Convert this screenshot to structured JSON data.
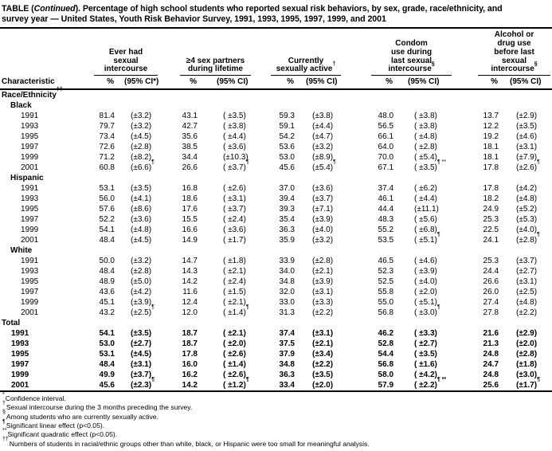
{
  "title": {
    "prefix": "TABLE (",
    "continued": "Continued",
    "suffix": "). ",
    "line1_rest": "Percentage of high school students who reported sexual risk behaviors, by sex, grade, race/ethnicity, and",
    "line2": "survey year — United States, Youth Risk Behavior Survey, 1991, 1993, 1995, 1997, 1999, and 2001"
  },
  "table": {
    "char_header": "Characteristic",
    "groups": [
      {
        "lines": [
          "Ever had",
          "sexual",
          "intercourse"
        ],
        "sup": "",
        "pct": "%",
        "ci": "(95% CI*)"
      },
      {
        "lines": [
          "≥4 sex partners",
          "during lifetime"
        ],
        "sup": "",
        "pct": "%",
        "ci": "(95% CI)"
      },
      {
        "lines": [
          "Currently",
          "sexually active"
        ],
        "sup": "†",
        "pct": "%",
        "ci": "(95% CI)"
      },
      {
        "lines": [
          "Condom",
          "use during",
          "last sexual",
          "intercourse"
        ],
        "sup": "§",
        "pct": "%",
        "ci": "(95% CI)"
      },
      {
        "lines": [
          "Alcohol or",
          "drug use",
          "before last",
          "sexual",
          "intercourse"
        ],
        "sup": "§",
        "pct": "%",
        "ci": "(95% CI)"
      }
    ],
    "rows": [
      {
        "t": "g",
        "label": "Race/Ethnicity",
        "sup": "††"
      },
      {
        "t": "s",
        "label": "Black"
      },
      {
        "label": "1991",
        "v": [
          [
            "81.4",
            "(±3.2)"
          ],
          [
            "43.1",
            "( ±3.5)"
          ],
          [
            "59.3",
            "(±3.8)"
          ],
          [
            "48.0",
            "( ±3.8)"
          ],
          [
            "13.7",
            "(±2.9)"
          ]
        ]
      },
      {
        "label": "1993",
        "v": [
          [
            "79.7",
            "(±3.2)"
          ],
          [
            "42.7",
            "( ±3.8)"
          ],
          [
            "59.1",
            "(±4.4)"
          ],
          [
            "56.5",
            "( ±3.8)"
          ],
          [
            "12.2",
            "(±3.5)"
          ]
        ]
      },
      {
        "label": "1995",
        "v": [
          [
            "73.4",
            "(±4.5)"
          ],
          [
            "35.6",
            "( ±4.4)"
          ],
          [
            "54.2",
            "(±4.7)"
          ],
          [
            "66.1",
            "( ±4.8)"
          ],
          [
            "19.2",
            "(±4.6)"
          ]
        ]
      },
      {
        "label": "1997",
        "v": [
          [
            "72.6",
            "(±2.8)"
          ],
          [
            "38.5",
            "( ±3.6)"
          ],
          [
            "53.6",
            "(±3.2)"
          ],
          [
            "64.0",
            "( ±2.8)"
          ],
          [
            "18.1",
            "(±3.1)"
          ]
        ]
      },
      {
        "label": "1999",
        "v": [
          [
            "71.2",
            "(±8.2)"
          ],
          [
            "34.4",
            "(±10.3)"
          ],
          [
            "53.0",
            "(±8.9)"
          ],
          [
            "70.0",
            "( ±5.4)"
          ],
          [
            "18.1",
            "(±7.9)"
          ]
        ]
      },
      {
        "label": "2001",
        "v": [
          [
            "60.8",
            "(±6.6)",
            "¶"
          ],
          [
            "26.6",
            "( ±3.7)",
            "¶"
          ],
          [
            "45.6",
            "(±5.4)",
            "¶"
          ],
          [
            "67.1",
            "( ±3.5)",
            "¶ **"
          ],
          [
            "17.8",
            "(±2.6)",
            "¶"
          ]
        ]
      },
      {
        "t": "s",
        "label": "Hispanic"
      },
      {
        "label": "1991",
        "v": [
          [
            "53.1",
            "(±3.5)"
          ],
          [
            "16.8",
            "( ±2.6)"
          ],
          [
            "37.0",
            "(±3.6)"
          ],
          [
            "37.4",
            "( ±6.2)"
          ],
          [
            "17.8",
            "(±4.2)"
          ]
        ]
      },
      {
        "label": "1993",
        "v": [
          [
            "56.0",
            "(±4.1)"
          ],
          [
            "18.6",
            "( ±3.1)"
          ],
          [
            "39.4",
            "(±3.7)"
          ],
          [
            "46.1",
            "( ±4.4)"
          ],
          [
            "18.2",
            "(±4.8)"
          ]
        ]
      },
      {
        "label": "1995",
        "v": [
          [
            "57.6",
            "(±8.6)"
          ],
          [
            "17.6",
            "( ±3.7)"
          ],
          [
            "39.3",
            "(±7.1)"
          ],
          [
            "44.4",
            "(±11.1)"
          ],
          [
            "24.9",
            "(±5.2)"
          ]
        ]
      },
      {
        "label": "1997",
        "v": [
          [
            "52.2",
            "(±3.6)"
          ],
          [
            "15.5",
            "( ±2.4)"
          ],
          [
            "35.4",
            "(±3.9)"
          ],
          [
            "48.3",
            "( ±5.6)"
          ],
          [
            "25.3",
            "(±5.3)"
          ]
        ]
      },
      {
        "label": "1999",
        "v": [
          [
            "54.1",
            "(±4.8)"
          ],
          [
            "16.6",
            "( ±3.6)"
          ],
          [
            "36.3",
            "(±4.0)"
          ],
          [
            "55.2",
            "( ±6.8)"
          ],
          [
            "22.5",
            "(±4.0)"
          ]
        ]
      },
      {
        "label": "2001",
        "v": [
          [
            "48.4",
            "(±4.5)"
          ],
          [
            "14.9",
            "( ±1.7)"
          ],
          [
            "35.9",
            "(±3.2)"
          ],
          [
            "53.5",
            "( ±5.1)",
            "¶"
          ],
          [
            "24.1",
            "(±2.8)",
            "¶"
          ]
        ]
      },
      {
        "t": "s",
        "label": "White"
      },
      {
        "label": "1991",
        "v": [
          [
            "50.0",
            "(±3.2)"
          ],
          [
            "14.7",
            "( ±1.8)"
          ],
          [
            "33.9",
            "(±2.8)"
          ],
          [
            "46.5",
            "( ±4.6)"
          ],
          [
            "25.3",
            "(±3.7)"
          ]
        ]
      },
      {
        "label": "1993",
        "v": [
          [
            "48.4",
            "(±2.8)"
          ],
          [
            "14.3",
            "( ±2.1)"
          ],
          [
            "34.0",
            "(±2.1)"
          ],
          [
            "52.3",
            "( ±3.9)"
          ],
          [
            "24.4",
            "(±2.7)"
          ]
        ]
      },
      {
        "label": "1995",
        "v": [
          [
            "48.9",
            "(±5.0)"
          ],
          [
            "14.2",
            "( ±2.4)"
          ],
          [
            "34.8",
            "(±3.9)"
          ],
          [
            "52.5",
            "( ±4.0)"
          ],
          [
            "26.6",
            "(±3.1)"
          ]
        ]
      },
      {
        "label": "1997",
        "v": [
          [
            "43.6",
            "(±4.2)"
          ],
          [
            "11.6",
            "( ±1.5)"
          ],
          [
            "32.0",
            "(±3.1)"
          ],
          [
            "55.8",
            "( ±2.0)"
          ],
          [
            "26.0",
            "(±2.5)"
          ]
        ]
      },
      {
        "label": "1999",
        "v": [
          [
            "45.1",
            "(±3.9)"
          ],
          [
            "12.4",
            "( ±2.1)"
          ],
          [
            "33.0",
            "(±3.3)"
          ],
          [
            "55.0",
            "( ±5.1)"
          ],
          [
            "27.4",
            "(±4.8)"
          ]
        ]
      },
      {
        "label": "2001",
        "v": [
          [
            "43.2",
            "(±2.5)",
            "¶"
          ],
          [
            "12.0",
            "( ±1.4)",
            "¶"
          ],
          [
            "31.3",
            "(±2.2)"
          ],
          [
            "56.8",
            "( ±3.0)",
            "¶"
          ],
          [
            "27.8",
            "(±2.2)"
          ]
        ]
      },
      {
        "t": "g",
        "label": "Total",
        "sup": ""
      },
      {
        "b": true,
        "label": "1991",
        "v": [
          [
            "54.1",
            "(±3.5)"
          ],
          [
            "18.7",
            "( ±2.1)"
          ],
          [
            "37.4",
            "(±3.1)"
          ],
          [
            "46.2",
            "( ±3.3)"
          ],
          [
            "21.6",
            "(±2.9)"
          ]
        ]
      },
      {
        "b": true,
        "label": "1993",
        "v": [
          [
            "53.0",
            "(±2.7)"
          ],
          [
            "18.7",
            "( ±2.0)"
          ],
          [
            "37.5",
            "(±2.1)"
          ],
          [
            "52.8",
            "( ±2.7)"
          ],
          [
            "21.3",
            "(±2.0)"
          ]
        ]
      },
      {
        "b": true,
        "label": "1995",
        "v": [
          [
            "53.1",
            "(±4.5)"
          ],
          [
            "17.8",
            "( ±2.6)"
          ],
          [
            "37.9",
            "(±3.4)"
          ],
          [
            "54.4",
            "( ±3.5)"
          ],
          [
            "24.8",
            "(±2.8)"
          ]
        ]
      },
      {
        "b": true,
        "label": "1997",
        "v": [
          [
            "48.4",
            "(±3.1)"
          ],
          [
            "16.0",
            "( ±1.4)"
          ],
          [
            "34.8",
            "(±2.2)"
          ],
          [
            "56.8",
            "( ±1.6)"
          ],
          [
            "24.7",
            "(±1.8)"
          ]
        ]
      },
      {
        "b": true,
        "label": "1999",
        "v": [
          [
            "49.9",
            "(±3.7)"
          ],
          [
            "16.2",
            "( ±2.6)"
          ],
          [
            "36.3",
            "(±3.5)"
          ],
          [
            "58.0",
            "( ±4.2)"
          ],
          [
            "24.8",
            "(±3.0)"
          ]
        ]
      },
      {
        "b": true,
        "label": "2001",
        "v": [
          [
            "45.6",
            "(±2.3)",
            "¶"
          ],
          [
            "14.2",
            "( ±1.2)",
            "¶"
          ],
          [
            "33.4",
            "(±2.0)"
          ],
          [
            "57.9",
            "( ±2.2)",
            "¶ **"
          ],
          [
            "25.6",
            "(±1.7)",
            "¶"
          ]
        ]
      }
    ]
  },
  "footnotes": [
    {
      "m": "*",
      "t": "Confidence interval."
    },
    {
      "m": "†",
      "t": "Sexual intercourse during the 3 months preceding the survey."
    },
    {
      "m": "§",
      "t": "Among students who are currently sexually active."
    },
    {
      "m": "¶",
      "t": "Significant linear effect (p<0.05)."
    },
    {
      "m": "**",
      "t": "Significant quadratic effect (p<0.05)."
    },
    {
      "m": "††",
      "t": "Numbers of students in racial/ethnic groups other than white, black, or Hispanic were too small for meaningful analysis."
    }
  ]
}
